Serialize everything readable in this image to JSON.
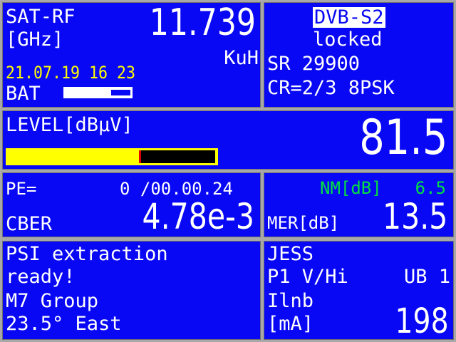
{
  "frequency": {
    "label": "SAT-RF",
    "unit": "[GHz]",
    "value": "11.739",
    "band": "KuH"
  },
  "datetime": "21.07.19 16 23",
  "battery": {
    "label": "BAT",
    "level": 0.7
  },
  "signal": {
    "standard": "DVB-S2",
    "status": "locked",
    "symbol_rate": "SR 29900",
    "code_rate": "CR=2/3 8PSK"
  },
  "level": {
    "label": "LEVEL[dBµV]",
    "value": "81.5",
    "bar_fraction": 0.64
  },
  "errors": {
    "pe_label": "PE=",
    "pe_value": "0 /00.00.24",
    "cber_label": "CBER",
    "cber_value": "4.78e-3"
  },
  "mer": {
    "nm_label": "NM[dB]",
    "nm_value": "6.5",
    "mer_label": "MER[dB]",
    "mer_value": "13.5"
  },
  "psi": {
    "lines": [
      "PSI extraction",
      "ready!",
      "M7 Group",
      "23.5° East"
    ]
  },
  "lnb": {
    "mode": "JESS",
    "config_left": "P1  V/Hi",
    "config_right": "UB 1",
    "current_label": "Ilnb",
    "current_unit": "[mA]",
    "current_value": "198"
  },
  "colors": {
    "panel": "#0808f4",
    "frame": "#a8a8a8",
    "date": "#ffff00",
    "nm": "#00e040",
    "bar_fill": "#ffff00",
    "bar_marker": "#e00000"
  }
}
